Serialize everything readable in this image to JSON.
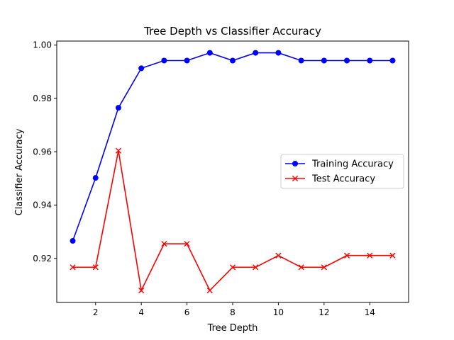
{
  "chart_data": {
    "type": "line",
    "title": "Tree Depth vs Classifier Accuracy",
    "xlabel": "Tree Depth",
    "ylabel": "Classifier Accuracy",
    "x": [
      1,
      2,
      3,
      4,
      5,
      6,
      7,
      8,
      9,
      10,
      11,
      12,
      13,
      14,
      15
    ],
    "xlim": [
      0.3,
      15.7
    ],
    "ylim": [
      0.9035,
      1.0015
    ],
    "xticks": [
      2,
      4,
      6,
      8,
      10,
      12,
      14
    ],
    "yticks": [
      0.92,
      0.94,
      0.96,
      0.98,
      1.0
    ],
    "ytick_labels": [
      "0.92",
      "0.94",
      "0.96",
      "0.98",
      "1.00"
    ],
    "grid": false,
    "legend_position": "center-right",
    "series": [
      {
        "name": "Training Accuracy",
        "color": "#0000ff",
        "marker": "circle",
        "values": [
          0.9266,
          0.9502,
          0.9765,
          0.9913,
          0.9942,
          0.9942,
          0.9971,
          0.9942,
          0.9971,
          0.9971,
          0.9942,
          0.9942,
          0.9942,
          0.9942,
          0.9942
        ]
      },
      {
        "name": "Test Accuracy",
        "color": "#ff0000",
        "marker": "x",
        "values": [
          0.9167,
          0.9167,
          0.9604,
          0.908,
          0.9255,
          0.9255,
          0.908,
          0.9167,
          0.9167,
          0.9211,
          0.9167,
          0.9167,
          0.9211,
          0.9211,
          0.9211
        ]
      }
    ]
  }
}
